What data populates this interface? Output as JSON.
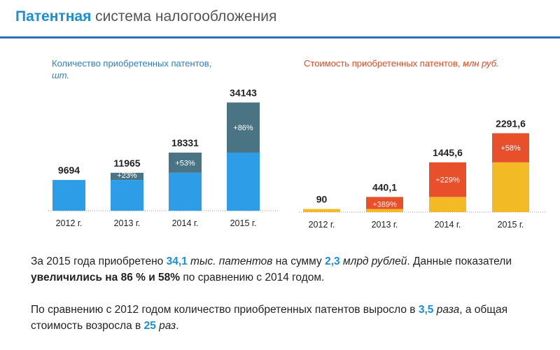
{
  "header": {
    "title_accent": "Патентная",
    "title_rest": " система налогообложения"
  },
  "colors": {
    "left_base": "#2e9de8",
    "left_increase": "#4a7383",
    "right_base": "#f2bb25",
    "right_increase": "#e8502b",
    "rule": "#2d6fb8",
    "accent_blue": "#1a8fd6"
  },
  "chart_data": [
    {
      "type": "bar",
      "title": "Количество приобретенных патентов,",
      "title_unit": "шт.",
      "categories": [
        "2012 г.",
        "2013 г.",
        "2014 г.",
        "2015 г."
      ],
      "values": [
        9694,
        11965,
        18331,
        34143
      ],
      "value_labels": [
        "9694",
        "11965",
        "18331",
        "34143"
      ],
      "increase_labels": [
        "",
        "+23%",
        "+53%",
        "+86%"
      ],
      "ylim": [
        0,
        36000
      ]
    },
    {
      "type": "bar",
      "title": "Стоимость приобретенных патентов,",
      "title_unit": "млн руб.",
      "categories": [
        "2012 г.",
        "2013 г.",
        "2014 г.",
        "2015 г."
      ],
      "values": [
        90,
        440.1,
        1445.6,
        2291.6
      ],
      "value_labels": [
        "90",
        "440,1",
        "1445,6",
        "2291,6"
      ],
      "increase_labels": [
        "",
        "+389%",
        "+229%",
        "+58%"
      ],
      "ylim": [
        0,
        2400
      ]
    }
  ],
  "summary": {
    "p1": {
      "t1": "За 2015 года приобретено ",
      "n1": "34,1",
      "t2": " тыс. патентов",
      "t3": " на сумму ",
      "n2": "2,3",
      "t4": " млрд рублей",
      "t5": ". Данные показатели ",
      "t6": "увеличились на 86 % и 58%",
      "t7": " по сравнению с 2014 годом."
    },
    "p2": {
      "t1": "По сравнению с 2012 годом количество приобретенных патентов выросло в ",
      "n1": "3,5",
      "t2": " раза",
      "t3": ", а общая стоимость возросла в ",
      "n2": "25",
      "t4": " раз",
      "t5": "."
    }
  }
}
